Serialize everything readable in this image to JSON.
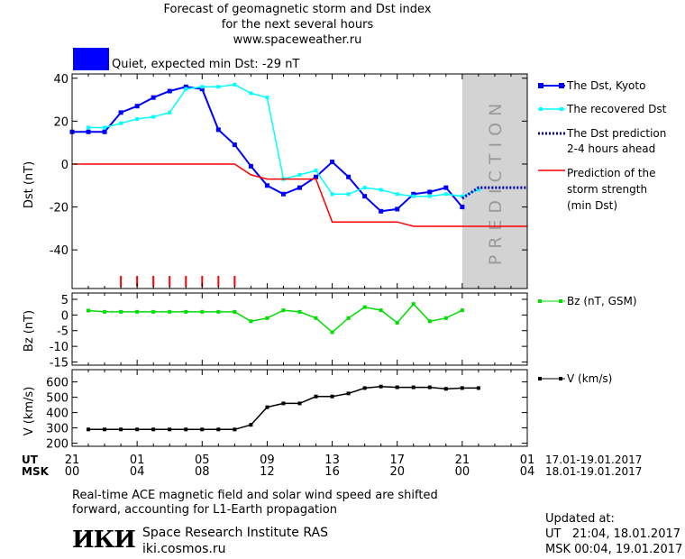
{
  "header": {
    "title_line1": "Forecast of geomagnetic storm and Dst index",
    "title_line2": "for the next several hours",
    "title_line3": "www.spaceweather.ru",
    "status_text": "Quiet, expected min Dst: -29 nT",
    "status_color": "#0000ff"
  },
  "panels": {
    "dst_ylabel": "Dst (nT)",
    "bz_ylabel": "Bz (nT)",
    "v_ylabel": "V (km/s)",
    "prediction_label": "PREDICTION"
  },
  "legend": {
    "dst_kyoto": "The Dst, Kyoto",
    "recovered": "The recovered Dst",
    "prediction_line1": "The Dst prediction",
    "prediction_line2": "2-4 hours ahead",
    "strength_line1": "Prediction of the",
    "strength_line2": "storm strength",
    "strength_line3": "(min Dst)",
    "bz": "Bz (nT, GSM)",
    "v": "V (km/s)"
  },
  "time_axis": {
    "ut_label": "UT",
    "msk_label": "MSK",
    "ut_ticks": [
      "21",
      "01",
      "05",
      "09",
      "13",
      "17",
      "21",
      "01"
    ],
    "msk_ticks": [
      "00",
      "04",
      "08",
      "12",
      "16",
      "20",
      "00",
      "04"
    ],
    "ut_range": "17.01-19.01.2017",
    "msk_range": "18.01-19.01.2017"
  },
  "footer": {
    "note_line1": "Real-time ACE magnetic field and solar wind speed are shifted",
    "note_line2": "forward, accounting for L1-Earth propagation",
    "logo_text": "ИКИ",
    "institute": "Space Research Institute RAS",
    "site": "iki.cosmos.ru",
    "updated_label": "Updated at:",
    "updated_ut": "UT   21:04, 18.01.2017",
    "updated_msk": "MSK 00:04, 19.01.2017"
  },
  "chart_data": [
    {
      "type": "line",
      "panel": "dst",
      "ylabel": "Dst (nT)",
      "ylim": [
        -58,
        42
      ],
      "yticks": [
        -40,
        -20,
        0,
        20,
        40
      ],
      "x_unit": "hours after 21 UT 17.01.2017",
      "prediction_window_hours": [
        24,
        28
      ],
      "series": [
        {
          "name": "The Dst, Kyoto",
          "color": "#0000ff",
          "x": [
            0,
            1,
            2,
            3,
            4,
            5,
            6,
            7,
            8,
            9,
            10,
            11,
            12,
            13,
            14,
            15,
            16,
            17,
            18,
            19,
            20,
            21,
            22,
            23,
            24
          ],
          "y": [
            15,
            15,
            15,
            24,
            27,
            31,
            34,
            36,
            35,
            16,
            9,
            -1,
            -10,
            -14,
            -11,
            -6,
            1,
            -6,
            -15,
            -22,
            -21,
            -14,
            -13,
            -11,
            -20
          ]
        },
        {
          "name": "The recovered Dst",
          "color": "#00ffff",
          "x": [
            1,
            2,
            3,
            4,
            5,
            6,
            7,
            8,
            9,
            10,
            11,
            12,
            13,
            14,
            15,
            16,
            17,
            18,
            19,
            20,
            21,
            22,
            23,
            24,
            25
          ],
          "y": [
            17,
            17,
            19,
            21,
            22,
            24,
            35,
            36,
            36,
            37,
            33,
            31,
            -7,
            -5,
            -3,
            -14,
            -14,
            -11,
            -12,
            -14,
            -15,
            -15,
            -14,
            -15,
            -12
          ]
        },
        {
          "name": "The Dst prediction 2-4 hours ahead",
          "color": "#0000cc",
          "x": [
            24,
            25,
            26,
            27,
            28
          ],
          "y": [
            -16,
            -11,
            -11,
            -11,
            -11
          ]
        },
        {
          "name": "Prediction of the storm strength (min Dst)",
          "color": "#ff0000",
          "x": [
            0,
            10,
            11,
            12,
            15,
            16,
            20,
            21,
            28
          ],
          "y": [
            0,
            0,
            -5,
            -7,
            -7,
            -27,
            -27,
            -29,
            -29
          ]
        }
      ],
      "storm_ticks_x": [
        3,
        4,
        5,
        6,
        7,
        8,
        9,
        10
      ],
      "storm_tick_color": "#ff0000"
    },
    {
      "type": "line",
      "panel": "bz",
      "ylabel": "Bz (nT)",
      "ylim": [
        -16,
        7
      ],
      "yticks": [
        5,
        0,
        -5,
        -10,
        -15
      ],
      "series": [
        {
          "name": "Bz (nT, GSM)",
          "color": "#00dd00",
          "x": [
            1,
            2,
            3,
            4,
            5,
            6,
            7,
            8,
            9,
            10,
            11,
            12,
            13,
            14,
            15,
            16,
            17,
            18,
            19,
            20,
            21,
            22,
            23,
            24,
            25
          ],
          "y": [
            1.4,
            1,
            1,
            1,
            1,
            1,
            1,
            1,
            1,
            1,
            -2,
            -1,
            1.5,
            1,
            -1,
            -5.5,
            -1,
            2.5,
            1.5,
            -2.5,
            3.5,
            -2,
            -1,
            1.5,
            null
          ]
        }
      ]
    },
    {
      "type": "line",
      "panel": "v",
      "ylabel": "V (km/s)",
      "ylim": [
        180,
        680
      ],
      "yticks": [
        600,
        500,
        400,
        300,
        200
      ],
      "series": [
        {
          "name": "V (km/s)",
          "color": "#000000",
          "x": [
            1,
            2,
            3,
            4,
            5,
            6,
            7,
            8,
            9,
            10,
            11,
            12,
            13,
            14,
            15,
            16,
            17,
            18,
            19,
            20,
            21,
            22,
            23,
            24,
            25
          ],
          "y": [
            290,
            290,
            290,
            290,
            290,
            290,
            290,
            290,
            290,
            290,
            320,
            435,
            460,
            460,
            505,
            505,
            525,
            560,
            570,
            565,
            565,
            565,
            555,
            560,
            560
          ]
        }
      ]
    }
  ]
}
